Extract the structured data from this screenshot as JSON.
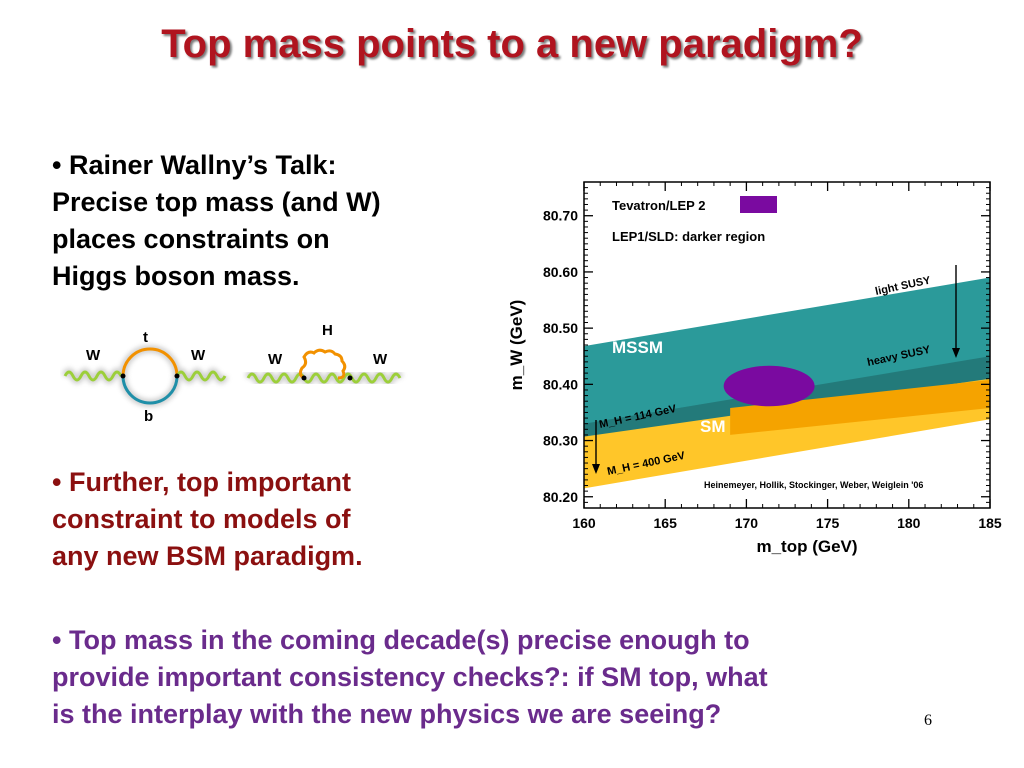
{
  "slide": {
    "title": "Top mass points to a new paradigm?",
    "bullet1_line1": "Rainer Wallny’s Talk:",
    "bullet1_line2": "Precise top mass (and W)",
    "bullet1_line3": "places constraints on",
    "bullet1_line4": "Higgs boson mass.",
    "bullet2_line1": "Further, top important",
    "bullet2_line2": "constraint to models of",
    "bullet2_line3": "any new BSM paradigm.",
    "bullet3_line1": "Top mass in the coming decade(s) precise enough to",
    "bullet3_line2": "provide important consistency checks?: if SM top, what",
    "bullet3_line3": "is the interplay with the new physics we are seeing?",
    "page_number": "6",
    "bullet_symbol": "•"
  },
  "diagrams": {
    "loop1": {
      "left": "W",
      "right": "W",
      "top": "t",
      "bottom": "b"
    },
    "loop2": {
      "left": "W",
      "right": "W",
      "top": "H"
    }
  },
  "chart_data": {
    "type": "area",
    "title": "",
    "xlabel": "m_top  (GeV)",
    "ylabel": "m_W  (GeV)",
    "xlim": [
      160,
      185
    ],
    "ylim": [
      80.18,
      80.76
    ],
    "xticks": [
      "160",
      "165",
      "170",
      "175",
      "180",
      "185"
    ],
    "yticks": [
      "80.20",
      "80.30",
      "80.40",
      "80.50",
      "80.60",
      "80.70"
    ],
    "legend": {
      "entry1": "Tevatron/LEP 2",
      "entry2": "LEP1/SLD: darker region"
    },
    "regions": [
      {
        "name": "MSSM",
        "color": "#2b9a9a",
        "upper": [
          [
            160,
            80.468
          ],
          [
            185,
            80.59
          ]
        ],
        "lower": [
          [
            160,
            80.31
          ],
          [
            185,
            80.415
          ]
        ]
      },
      {
        "name": "SM",
        "color": "#ffc629",
        "upper": [
          [
            160,
            80.307
          ],
          [
            185,
            80.41
          ]
        ],
        "lower": [
          [
            160,
            80.215
          ],
          [
            185,
            80.338
          ]
        ]
      }
    ],
    "ellipse": {
      "name": "Tevatron/LEP 2",
      "center": [
        171.4,
        80.397
      ],
      "rx": 2.8,
      "ry": 0.036,
      "color": "#7a0aa0"
    },
    "annotations": {
      "mssm": "MSSM",
      "sm": "SM",
      "light_susy": "light SUSY",
      "heavy_susy": "heavy SUSY",
      "mh114": "M_H = 114 GeV",
      "mh400": "M_H = 400 GeV",
      "credit": "Heinemeyer, Hollik, Stockinger, Weber, Weiglein '06"
    },
    "colors": {
      "mssm": "#2b9a9a",
      "mssm_dark": "#237a7a",
      "sm": "#ffc629",
      "sm_dark": "#f5a300",
      "ellipse": "#7a0aa0"
    }
  }
}
